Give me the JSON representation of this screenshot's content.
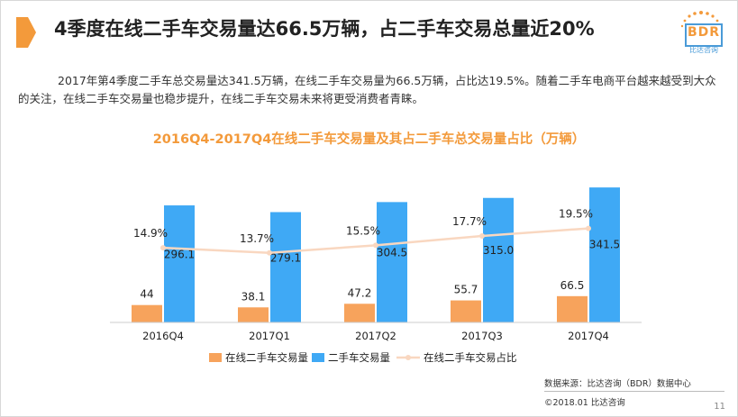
{
  "title": "4季度在线二手车交易量达66.5万辆，占二手车交易总量近20%",
  "logo": {
    "text": "BDR",
    "subtext": "比达咨询"
  },
  "description": "2017年第4季度二手车总交易量达341.5万辆，在线二手车交易量为66.5万辆，占比达19.5%。随着二手车电商平台越来越受到大众的关注，在线二手车交易量也稳步提升，在线二手车交易未来将更受消费者青睐。",
  "colors": {
    "accent": "#f39a3b",
    "bar_online": "#f7a35c",
    "bar_total": "#3fa9f5",
    "line": "#f9d7c0"
  },
  "chart_data": {
    "type": "bar",
    "title": "2016Q4-2017Q4在线二手车交易量及其占二手车总交易量占比（万辆）",
    "categories": [
      "2016Q4",
      "2017Q1",
      "2017Q2",
      "2017Q3",
      "2017Q4"
    ],
    "series": [
      {
        "name": "在线二手车交易量",
        "type": "bar",
        "values": [
          44,
          38.1,
          47.2,
          55.7,
          66.5
        ],
        "labels": [
          "44",
          "38.1",
          "47.2",
          "55.7",
          "66.5"
        ]
      },
      {
        "name": "二手车交易量",
        "type": "bar",
        "values": [
          296.1,
          279.1,
          304.5,
          315.0,
          341.5
        ],
        "labels": [
          "296.1",
          "279.1",
          "304.5",
          "315.0",
          "341.5"
        ]
      },
      {
        "name": "在线二手车交易占比",
        "type": "line",
        "values": [
          14.9,
          13.7,
          15.5,
          17.7,
          19.5
        ],
        "labels": [
          "14.9%",
          "13.7%",
          "15.5%",
          "17.7%",
          "19.5%"
        ]
      }
    ],
    "ylim": [
      0,
      360
    ],
    "ylim_secondary": [
      0,
      32
    ],
    "legend_position": "bottom",
    "grid": false
  },
  "footer": {
    "source": "数据来源：比达咨询（BDR）数据中心",
    "copyright": "©2018.01  比达咨询",
    "page_number": "11"
  }
}
